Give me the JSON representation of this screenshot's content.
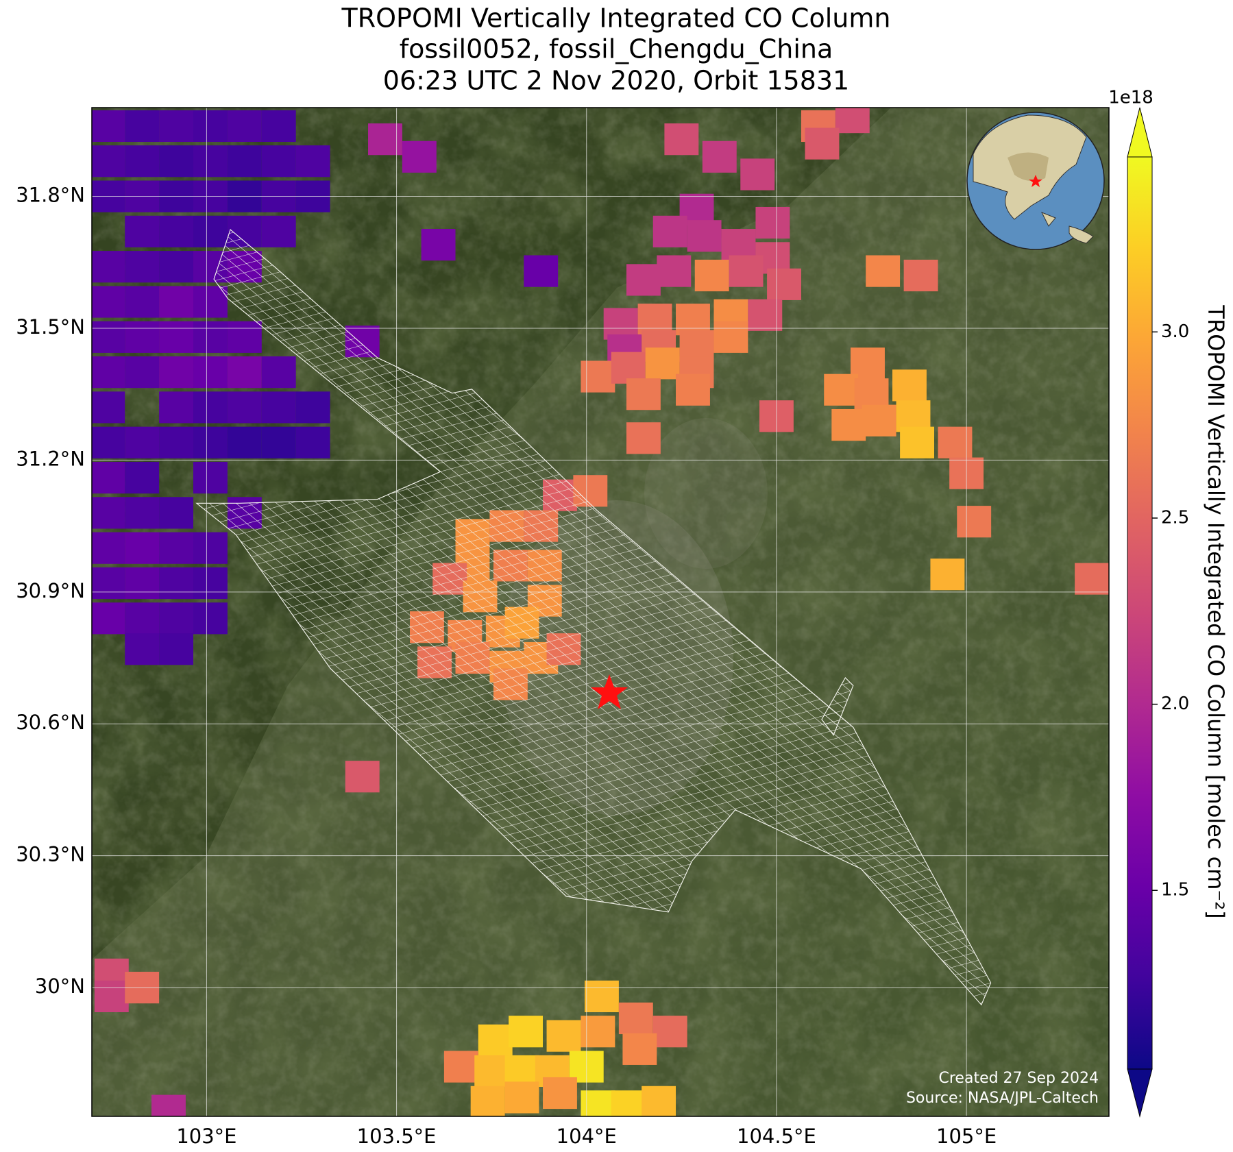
{
  "chart_data": {
    "type": "map",
    "title": [
      "TROPOMI Vertically Integrated CO Column",
      "fossil0052, fossil_Chengdu_China",
      "06:23 UTC 2 Nov 2020, Orbit 15831"
    ],
    "xlim": [
      102.698,
      105.375
    ],
    "ylim": [
      29.707,
      32.002
    ],
    "xticks": [
      {
        "value": 103,
        "label": "103°E"
      },
      {
        "value": 103.5,
        "label": "103.5°E"
      },
      {
        "value": 104,
        "label": "104°E"
      },
      {
        "value": 104.5,
        "label": "104.5°E"
      },
      {
        "value": 105,
        "label": "105°E"
      }
    ],
    "yticks": [
      {
        "value": 30,
        "label": "30°N"
      },
      {
        "value": 30.3,
        "label": "30.3°N"
      },
      {
        "value": 30.6,
        "label": "30.6°N"
      },
      {
        "value": 30.9,
        "label": "30.9°N"
      },
      {
        "value": 31.2,
        "label": "31.2°N"
      },
      {
        "value": 31.5,
        "label": "31.5°N"
      },
      {
        "value": 31.8,
        "label": "31.8°N"
      }
    ],
    "grid": true,
    "pixels": {
      "lon": [
        102.74,
        102.83,
        102.92,
        103.01,
        103.1,
        103.19,
        102.74,
        102.83,
        102.92,
        103.01,
        103.1,
        103.19,
        103.28,
        102.74,
        102.83,
        102.92,
        103.01,
        103.1,
        103.19,
        103.28,
        102.83,
        102.92,
        103.01,
        103.1,
        103.19,
        102.74,
        102.83,
        102.92,
        103.01,
        103.1,
        102.74,
        102.83,
        102.92,
        103.01,
        102.74,
        102.83,
        102.92,
        103.01,
        103.1,
        102.74,
        102.83,
        102.92,
        103.01,
        103.1,
        103.19,
        102.74,
        102.92,
        103.01,
        103.1,
        103.19,
        103.28,
        102.74,
        102.83,
        102.92,
        103.01,
        103.1,
        103.19,
        103.28,
        102.74,
        102.83,
        103.01,
        102.74,
        102.83,
        102.92,
        103.1,
        102.74,
        102.83,
        102.92,
        103.01,
        102.74,
        102.83,
        102.92,
        103.01,
        102.74,
        102.83,
        102.92,
        103.01,
        102.83,
        102.92,
        103.47,
        103.56,
        103.61,
        103.88,
        103.41,
        104.25,
        104.35,
        104.45,
        104.61,
        104.7,
        104.62,
        104.29,
        104.22,
        104.31,
        104.49,
        104.4,
        104.49,
        104.15,
        104.23,
        104.33,
        104.42,
        104.52,
        104.09,
        104.18,
        104.28,
        104.38,
        104.47,
        104.1,
        104.19,
        104.29,
        104.38,
        104.03,
        104.11,
        104.2,
        104.29,
        104.15,
        104.28,
        104.15,
        104.5,
        104.78,
        104.88,
        104.74,
        104.67,
        104.75,
        104.85,
        104.69,
        104.77,
        104.86,
        104.87,
        104.97,
        105.0,
        105.02,
        104.95,
        105.33,
        103.93,
        104.01,
        103.7,
        103.79,
        103.88,
        103.7,
        103.8,
        103.89,
        103.64,
        103.72,
        103.89,
        103.58,
        103.68,
        103.78,
        103.83,
        103.6,
        103.7,
        103.79,
        103.88,
        103.94,
        103.8,
        103.41,
        104.04,
        104.03,
        104.13,
        104.22,
        103.76,
        103.84,
        103.94,
        104.14,
        103.67,
        103.75,
        103.83,
        103.91,
        104.0,
        103.74,
        103.83,
        103.93,
        104.03,
        104.11,
        104.19,
        102.75,
        102.75,
        102.83,
        102.9
      ],
      "lat": [
        31.96,
        31.96,
        31.96,
        31.96,
        31.96,
        31.96,
        31.88,
        31.88,
        31.88,
        31.88,
        31.88,
        31.88,
        31.88,
        31.8,
        31.8,
        31.8,
        31.8,
        31.8,
        31.8,
        31.8,
        31.72,
        31.72,
        31.72,
        31.72,
        31.72,
        31.64,
        31.64,
        31.64,
        31.64,
        31.64,
        31.56,
        31.56,
        31.56,
        31.56,
        31.48,
        31.48,
        31.48,
        31.48,
        31.48,
        31.4,
        31.4,
        31.4,
        31.4,
        31.4,
        31.4,
        31.32,
        31.32,
        31.32,
        31.32,
        31.32,
        31.32,
        31.24,
        31.24,
        31.24,
        31.24,
        31.24,
        31.24,
        31.24,
        31.16,
        31.16,
        31.16,
        31.08,
        31.08,
        31.08,
        31.08,
        31.0,
        31.0,
        31.0,
        31.0,
        30.92,
        30.92,
        30.92,
        30.92,
        30.84,
        30.84,
        30.84,
        30.84,
        30.77,
        30.77,
        31.93,
        31.89,
        31.69,
        31.63,
        31.47,
        31.93,
        31.89,
        31.85,
        31.96,
        31.98,
        31.92,
        31.77,
        31.72,
        31.71,
        31.74,
        31.69,
        31.66,
        31.61,
        31.63,
        31.62,
        31.63,
        31.6,
        31.51,
        31.52,
        31.52,
        31.53,
        31.53,
        31.45,
        31.46,
        31.46,
        31.48,
        31.39,
        31.41,
        31.42,
        31.4,
        31.35,
        31.36,
        31.25,
        31.3,
        31.63,
        31.62,
        31.42,
        31.36,
        31.35,
        31.37,
        31.28,
        31.29,
        31.3,
        31.24,
        31.24,
        31.17,
        31.06,
        30.94,
        30.93,
        31.12,
        31.13,
        31.03,
        31.05,
        31.05,
        30.96,
        30.96,
        30.96,
        30.93,
        30.89,
        30.88,
        30.82,
        30.8,
        30.81,
        30.83,
        30.74,
        30.75,
        30.73,
        30.75,
        30.77,
        30.69,
        30.48,
        29.98,
        29.9,
        29.93,
        29.9,
        29.88,
        29.9,
        29.89,
        29.86,
        29.82,
        29.81,
        29.81,
        29.81,
        29.82,
        29.74,
        29.75,
        29.76,
        29.73,
        29.73,
        29.74,
        30.03,
        29.98,
        30.0,
        29.72
      ],
      "values": [
        1.4,
        1.3,
        1.35,
        1.3,
        1.35,
        1.3,
        1.35,
        1.3,
        1.25,
        1.3,
        1.25,
        1.3,
        1.35,
        1.3,
        1.35,
        1.25,
        1.3,
        1.2,
        1.3,
        1.25,
        1.35,
        1.3,
        1.25,
        1.3,
        1.35,
        1.4,
        1.35,
        1.3,
        1.4,
        1.5,
        1.45,
        1.4,
        1.55,
        1.45,
        1.4,
        1.45,
        1.5,
        1.4,
        1.45,
        1.45,
        1.4,
        1.55,
        1.5,
        1.6,
        1.4,
        1.35,
        1.4,
        1.3,
        1.35,
        1.3,
        1.25,
        1.3,
        1.35,
        1.3,
        1.25,
        1.2,
        1.2,
        1.25,
        1.45,
        1.3,
        1.35,
        1.4,
        1.35,
        1.3,
        1.4,
        1.45,
        1.5,
        1.4,
        1.35,
        1.4,
        1.45,
        1.35,
        1.3,
        1.5,
        1.4,
        1.35,
        1.3,
        1.35,
        1.3,
        1.95,
        1.8,
        1.6,
        1.5,
        1.55,
        2.3,
        2.15,
        2.2,
        2.6,
        2.3,
        2.4,
        2.0,
        2.1,
        2.1,
        2.2,
        2.2,
        2.3,
        2.15,
        2.15,
        2.75,
        2.35,
        2.4,
        2.2,
        2.6,
        2.7,
        2.8,
        2.35,
        2.05,
        2.55,
        2.65,
        2.75,
        2.65,
        2.5,
        2.85,
        2.65,
        2.65,
        2.7,
        2.6,
        2.45,
        2.75,
        2.55,
        2.75,
        2.8,
        2.75,
        3.05,
        2.8,
        2.8,
        3.1,
        3.15,
        2.65,
        2.6,
        2.65,
        3.05,
        2.55,
        2.45,
        2.65,
        2.85,
        2.75,
        2.65,
        2.85,
        2.7,
        2.8,
        2.55,
        2.85,
        2.85,
        2.7,
        2.75,
        2.85,
        2.95,
        2.6,
        2.7,
        2.85,
        2.85,
        2.6,
        2.75,
        2.4,
        3.1,
        2.9,
        2.65,
        2.55,
        3.2,
        3.25,
        3.1,
        2.75,
        2.7,
        3.1,
        3.2,
        3.1,
        3.35,
        3.05,
        3.0,
        2.85,
        3.35,
        3.25,
        3.1,
        2.3,
        2.2,
        2.55,
        2.0
      ]
    },
    "colorbar": {
      "label": "TROPOMI Vertically Integrated CO Column [molec cm⁻²]",
      "offset_label": "1e18",
      "clim": [
        1.02,
        3.47
      ],
      "ticks": [
        {
          "value": 1.5,
          "label": "1.5"
        },
        {
          "value": 2,
          "label": "2.0"
        },
        {
          "value": 2.5,
          "label": "2.5"
        },
        {
          "value": 3,
          "label": "3.0"
        }
      ],
      "colormap": "plasma",
      "extend": "both"
    },
    "annotations": [
      "Created 27 Sep 2024",
      "Source: NASA/JPL-Caltech"
    ]
  }
}
